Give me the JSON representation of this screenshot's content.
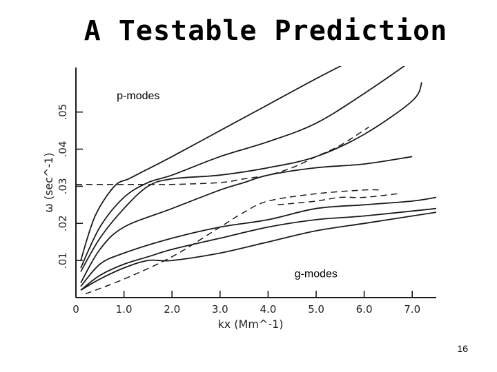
{
  "slide": {
    "title": "A Testable Prediction",
    "page_number": "16"
  },
  "chart_data": {
    "type": "line",
    "xlabel": "kx (Mm^-1)",
    "ylabel": "ω (sec^-1)",
    "xlim": [
      0,
      7.5
    ],
    "ylim": [
      0,
      0.062
    ],
    "x_ticks": [
      {
        "value": 0,
        "label": "0"
      },
      {
        "value": 1,
        "label": "1.0"
      },
      {
        "value": 2,
        "label": "2.0"
      },
      {
        "value": 3,
        "label": "3.0"
      },
      {
        "value": 4,
        "label": "4.0"
      },
      {
        "value": 5,
        "label": "5.0"
      },
      {
        "value": 6,
        "label": "6.0"
      },
      {
        "value": 7,
        "label": "7.0"
      }
    ],
    "y_ticks": [
      {
        "value": 0.01,
        "label": ".01"
      },
      {
        "value": 0.02,
        "label": ".02"
      },
      {
        "value": 0.03,
        "label": ".03"
      },
      {
        "value": 0.04,
        "label": ".04"
      },
      {
        "value": 0.05,
        "label": ".05"
      }
    ],
    "annotations": [
      {
        "text": "p-modes",
        "x": 0.85,
        "y": 0.0535
      },
      {
        "text": "g-modes",
        "x": 4.55,
        "y": 0.0055
      }
    ],
    "series": [
      {
        "style": "solid",
        "x": [
          0.1,
          0.4,
          0.8,
          1.1,
          1.4,
          2.0,
          3.0,
          4.0,
          5.0,
          5.6
        ],
        "y": [
          0.01,
          0.022,
          0.03,
          0.032,
          0.034,
          0.038,
          0.045,
          0.052,
          0.059,
          0.063
        ]
      },
      {
        "style": "solid",
        "x": [
          0.1,
          0.5,
          1.0,
          1.5,
          2.0,
          3.0,
          4.0,
          5.0,
          6.0,
          6.9
        ],
        "y": [
          0.008,
          0.019,
          0.027,
          0.031,
          0.033,
          0.038,
          0.042,
          0.047,
          0.055,
          0.063
        ]
      },
      {
        "style": "solid",
        "x": [
          0.1,
          0.5,
          1.0,
          1.5,
          2.0,
          3.0,
          4.0,
          5.0,
          6.0,
          7.0,
          7.2
        ],
        "y": [
          0.007,
          0.016,
          0.024,
          0.03,
          0.032,
          0.033,
          0.035,
          0.038,
          0.044,
          0.053,
          0.058
        ]
      },
      {
        "style": "dashed",
        "x": [
          0.0,
          1.0,
          2.0,
          3.0,
          3.5,
          4.0,
          4.5,
          5.0,
          5.5,
          6.1
        ],
        "y": [
          0.0305,
          0.0305,
          0.0305,
          0.031,
          0.032,
          0.033,
          0.035,
          0.038,
          0.041,
          0.046
        ]
      },
      {
        "style": "solid",
        "x": [
          0.1,
          0.5,
          1.0,
          2.0,
          3.0,
          3.5,
          4.0,
          5.0,
          6.0,
          7.0
        ],
        "y": [
          0.004,
          0.013,
          0.019,
          0.024,
          0.029,
          0.031,
          0.033,
          0.035,
          0.036,
          0.038
        ]
      },
      {
        "style": "solid",
        "x": [
          0.1,
          0.5,
          1.0,
          2.0,
          3.0,
          4.0,
          5.0,
          6.0,
          7.0,
          7.5
        ],
        "y": [
          0.003,
          0.009,
          0.012,
          0.016,
          0.019,
          0.021,
          0.024,
          0.025,
          0.026,
          0.027
        ]
      },
      {
        "style": "dashed",
        "x": [
          0.2,
          1.0,
          2.0,
          3.0,
          3.5,
          4.0,
          5.0,
          6.0,
          6.3
        ],
        "y": [
          0.001,
          0.005,
          0.011,
          0.019,
          0.023,
          0.026,
          0.028,
          0.029,
          0.029
        ]
      },
      {
        "style": "dashed",
        "x": [
          4.2,
          5.0,
          5.5,
          6.0,
          6.7
        ],
        "y": [
          0.025,
          0.026,
          0.027,
          0.027,
          0.028
        ]
      },
      {
        "style": "solid",
        "x": [
          0.1,
          0.5,
          1.0,
          1.5,
          2.0,
          3.0,
          4.0,
          5.0,
          6.0,
          7.5
        ],
        "y": [
          0.002,
          0.006,
          0.009,
          0.011,
          0.013,
          0.016,
          0.019,
          0.021,
          0.022,
          0.024
        ]
      },
      {
        "style": "solid",
        "x": [
          0.1,
          0.5,
          1.0,
          1.5,
          2.0,
          3.0,
          4.0,
          5.0,
          6.0,
          7.5
        ],
        "y": [
          0.002,
          0.005,
          0.008,
          0.01,
          0.01,
          0.012,
          0.015,
          0.018,
          0.02,
          0.023
        ]
      }
    ]
  }
}
